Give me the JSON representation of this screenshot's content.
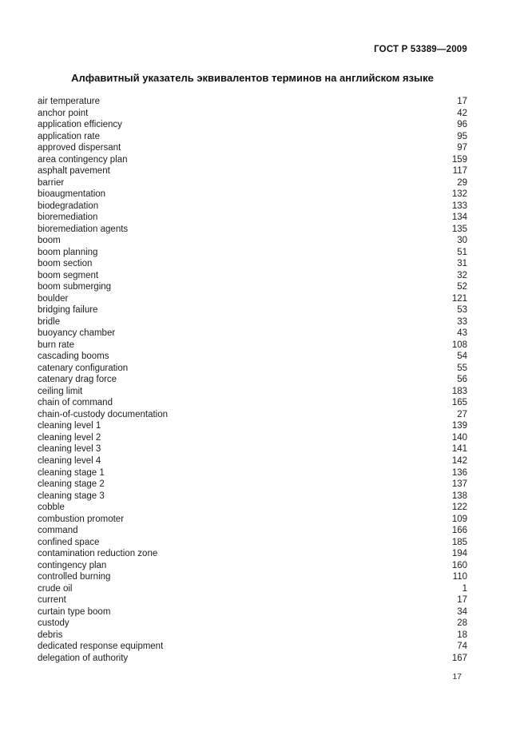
{
  "page": {
    "doc_code": "ГОСТ Р 53389—2009",
    "title": "Алфавитный указатель эквивалентов терминов на английском языке",
    "page_number": "17"
  },
  "colors": {
    "background": "#ffffff",
    "text": "#1c1c1c"
  },
  "index": {
    "entries": [
      {
        "term": "air temperature",
        "page": "17"
      },
      {
        "term": "anchor point",
        "page": "42"
      },
      {
        "term": "application efficiency",
        "page": "96"
      },
      {
        "term": "application rate",
        "page": "95"
      },
      {
        "term": "approved dispersant",
        "page": "97"
      },
      {
        "term": "area contingency plan",
        "page": "159"
      },
      {
        "term": "asphalt pavement",
        "page": "117"
      },
      {
        "term": "barrier",
        "page": "29"
      },
      {
        "term": "bioaugmentation",
        "page": "132"
      },
      {
        "term": "biodegradation",
        "page": "133"
      },
      {
        "term": "bioremediation",
        "page": "134"
      },
      {
        "term": "bioremediation agents",
        "page": "135"
      },
      {
        "term": "boom",
        "page": "30"
      },
      {
        "term": "boom planning",
        "page": "51"
      },
      {
        "term": "boom section",
        "page": "31"
      },
      {
        "term": "boom segment",
        "page": "32"
      },
      {
        "term": "boom submerging",
        "page": "52"
      },
      {
        "term": "boulder",
        "page": "121"
      },
      {
        "term": "bridging failure",
        "page": "53"
      },
      {
        "term": "bridle",
        "page": "33"
      },
      {
        "term": "buoyancy chamber",
        "page": "43"
      },
      {
        "term": "burn rate",
        "page": "108"
      },
      {
        "term": "cascading booms",
        "page": "54"
      },
      {
        "term": "catenary configuration",
        "page": "55"
      },
      {
        "term": "catenary drag force",
        "page": "56"
      },
      {
        "term": "ceiling limit",
        "page": "183"
      },
      {
        "term": "chain of command",
        "page": "165"
      },
      {
        "term": "chain-of-custody documentation",
        "page": "27"
      },
      {
        "term": "cleaning level 1",
        "page": "139"
      },
      {
        "term": "cleaning level 2",
        "page": "140"
      },
      {
        "term": "cleaning level 3",
        "page": "141"
      },
      {
        "term": "cleaning level 4",
        "page": "142"
      },
      {
        "term": "cleaning stage 1",
        "page": "136"
      },
      {
        "term": "cleaning stage 2",
        "page": "137"
      },
      {
        "term": "cleaning stage 3",
        "page": "138"
      },
      {
        "term": "cobble",
        "page": "122"
      },
      {
        "term": "combustion promoter",
        "page": "109"
      },
      {
        "term": "command",
        "page": "166"
      },
      {
        "term": "confined space",
        "page": "185"
      },
      {
        "term": "contamination reduction zone",
        "page": "194"
      },
      {
        "term": "contingency plan",
        "page": "160"
      },
      {
        "term": "controlled burning",
        "page": "110"
      },
      {
        "term": "crude oil",
        "page": "1"
      },
      {
        "term": "current",
        "page": "17"
      },
      {
        "term": "curtain type boom",
        "page": "34"
      },
      {
        "term": "custody",
        "page": "28"
      },
      {
        "term": "debris",
        "page": "18"
      },
      {
        "term": "dedicated response equipment",
        "page": "74"
      },
      {
        "term": "delegation of authority",
        "page": "167"
      }
    ]
  }
}
